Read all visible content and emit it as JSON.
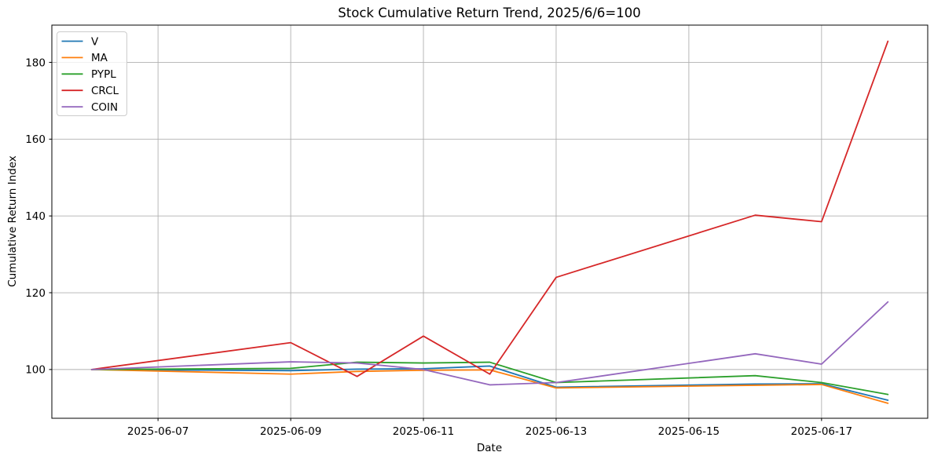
{
  "figure": {
    "background": "#ffffff"
  },
  "chart_data": {
    "type": "line",
    "title": "Stock Cumulative Return Trend, 2025/6/6=100",
    "xlabel": "Date",
    "ylabel": "Cumulative Return Index",
    "x_dates": [
      "2025-06-06",
      "2025-06-09",
      "2025-06-10",
      "2025-06-11",
      "2025-06-12",
      "2025-06-13",
      "2025-06-16",
      "2025-06-17",
      "2025-06-18"
    ],
    "x_days": [
      6,
      9,
      10,
      11,
      12,
      13,
      16,
      17,
      18
    ],
    "series": [
      {
        "name": "V",
        "color": "#1f77b4",
        "values": [
          100,
          99.7,
          100.1,
          100.2,
          100.9,
          95.4,
          96.2,
          96.3,
          92.0
        ]
      },
      {
        "name": "MA",
        "color": "#ff7f0e",
        "values": [
          100,
          98.8,
          99.5,
          99.8,
          99.9,
          95.2,
          95.9,
          96.1,
          91.2
        ]
      },
      {
        "name": "PYPL",
        "color": "#2ca02c",
        "values": [
          100,
          100.3,
          101.9,
          101.7,
          101.9,
          96.6,
          98.4,
          96.6,
          93.5
        ]
      },
      {
        "name": "CRCL",
        "color": "#d62728",
        "values": [
          100,
          107.0,
          98.2,
          108.7,
          98.8,
          124.0,
          140.2,
          138.5,
          185.5
        ]
      },
      {
        "name": "COIN",
        "color": "#9467bd",
        "values": [
          100,
          102.0,
          101.7,
          100.0,
          96.0,
          96.6,
          104.1,
          101.4,
          117.6
        ]
      }
    ],
    "legend": [
      "V",
      "MA",
      "PYPL",
      "CRCL",
      "COIN"
    ],
    "legend_position": "upper-left",
    "x_ticks": [
      {
        "day": 7,
        "label": "2025-06-07"
      },
      {
        "day": 9,
        "label": "2025-06-09"
      },
      {
        "day": 11,
        "label": "2025-06-11"
      },
      {
        "day": 13,
        "label": "2025-06-13"
      },
      {
        "day": 15,
        "label": "2025-06-15"
      },
      {
        "day": 17,
        "label": "2025-06-17"
      }
    ],
    "y_ticks": [
      100,
      120,
      140,
      160,
      180
    ],
    "xlim_days": [
      5.4,
      18.6
    ],
    "ylim": [
      87.3,
      189.7
    ],
    "grid": true,
    "grid_color": "#b0b0b0",
    "axis_color": "#000000",
    "legend_border_color": "#cccccc"
  }
}
